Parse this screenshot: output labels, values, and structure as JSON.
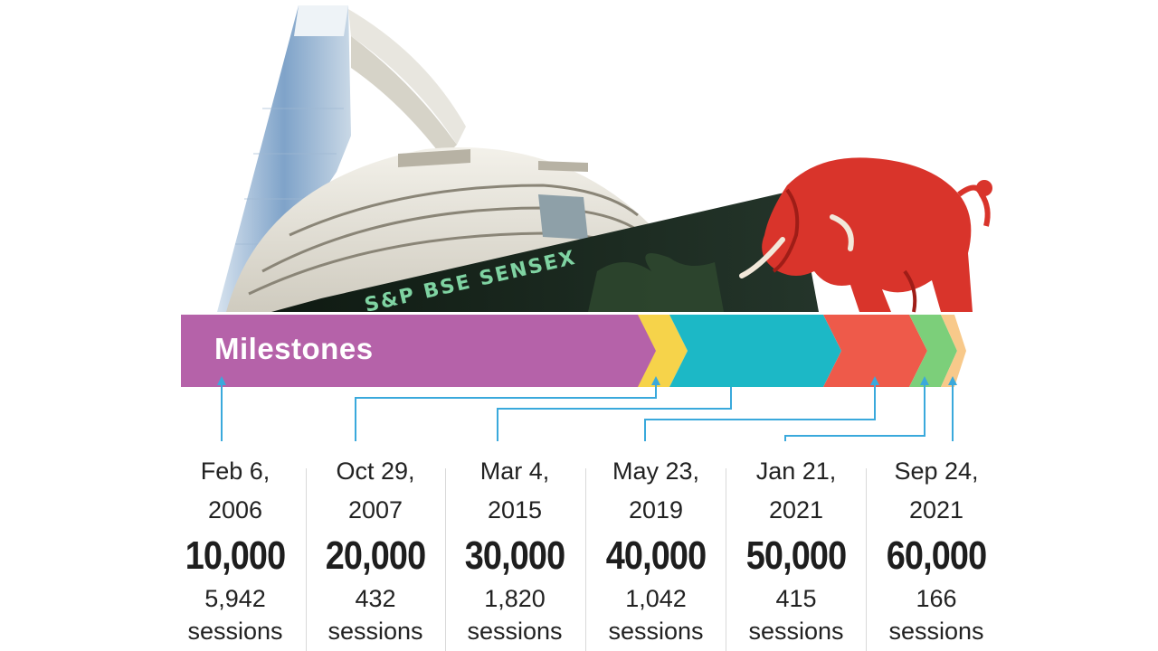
{
  "banner": {
    "title": "Milestones",
    "sign_text": "S&P BSE SENSEX"
  },
  "colors": {
    "band_purple": "#b562a9",
    "band_yellow": "#f6d34a",
    "band_teal": "#1cb8c6",
    "band_red": "#ee5a4a",
    "band_green": "#7ccf7a",
    "band_peach": "#f8c98a",
    "connector": "#3aa9dc",
    "bull": "#d9342b"
  },
  "milestones": [
    {
      "date_line1": "Feb 6,",
      "date_line2": "2006",
      "level": "10,000",
      "sessions_count": "5,942",
      "sessions_label": "sessions"
    },
    {
      "date_line1": "Oct 29,",
      "date_line2": "2007",
      "level": "20,000",
      "sessions_count": "432",
      "sessions_label": "sessions"
    },
    {
      "date_line1": "Mar 4,",
      "date_line2": "2015",
      "level": "30,000",
      "sessions_count": "1,820",
      "sessions_label": "sessions"
    },
    {
      "date_line1": "May 23,",
      "date_line2": "2019",
      "level": "40,000",
      "sessions_count": "1,042",
      "sessions_label": "sessions"
    },
    {
      "date_line1": "Jan 21,",
      "date_line2": "2021",
      "level": "50,000",
      "sessions_count": "415",
      "sessions_label": "sessions"
    },
    {
      "date_line1": "Sep 24,",
      "date_line2": "2021",
      "level": "60,000",
      "sessions_count": "166",
      "sessions_label": "sessions"
    }
  ]
}
